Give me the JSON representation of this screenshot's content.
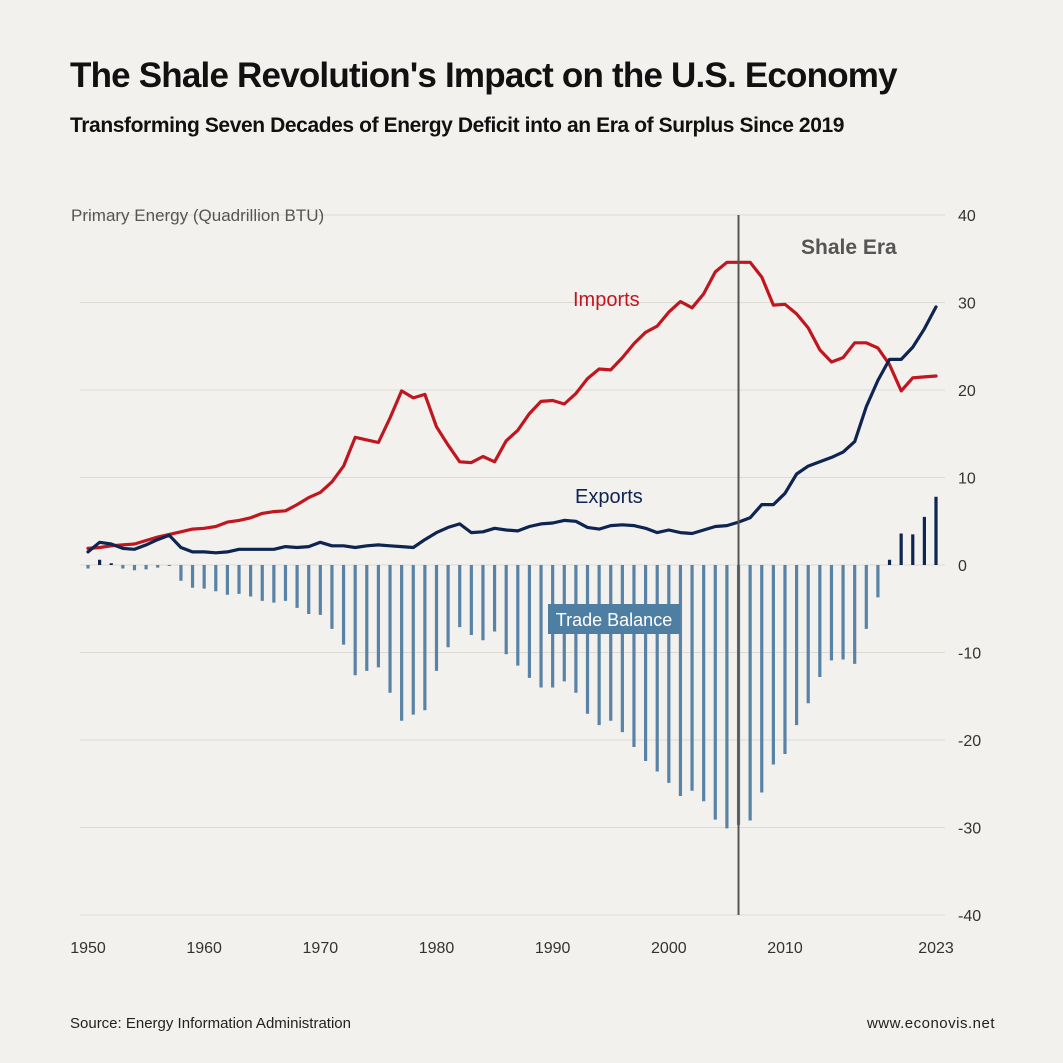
{
  "title": "The Shale Revolution's Impact on the U.S. Economy",
  "subtitle": "Transforming Seven Decades of Energy Deficit into an Era of Surplus Since 2019",
  "source": "Source: Energy Information Administration",
  "website": "www.econovis.net",
  "colors": {
    "background": "#f3f1ed",
    "imports": "#c0161f",
    "exports": "#0e2451",
    "balance_deficit": "#5882a6",
    "balance_surplus": "#0e2451",
    "shale_line": "#555555",
    "grid": "#dddad4"
  },
  "chart_data": {
    "type": "line",
    "ylabel": "Primary Energy (Quadrillion BTU)",
    "ylim": [
      -40,
      40
    ],
    "y_ticks": [
      40,
      30,
      20,
      10,
      0,
      -10,
      -20,
      -30,
      -40
    ],
    "x_range": [
      1950,
      2023
    ],
    "x_ticks": [
      1950,
      1960,
      1970,
      1980,
      1990,
      2000,
      2010,
      2023
    ],
    "grid": true,
    "annotations": [
      {
        "text": "Shale Era",
        "x": 2006
      },
      {
        "text": "Imports",
        "series": "Imports"
      },
      {
        "text": "Exports",
        "series": "Exports"
      },
      {
        "text": "Trade Balance",
        "series": "Trade Balance"
      }
    ],
    "shale_start_year": 2006,
    "x": [
      1950,
      1951,
      1952,
      1953,
      1954,
      1955,
      1956,
      1957,
      1958,
      1959,
      1960,
      1961,
      1962,
      1963,
      1964,
      1965,
      1966,
      1967,
      1968,
      1969,
      1970,
      1971,
      1972,
      1973,
      1974,
      1975,
      1976,
      1977,
      1978,
      1979,
      1980,
      1981,
      1982,
      1983,
      1984,
      1985,
      1986,
      1987,
      1988,
      1989,
      1990,
      1991,
      1992,
      1993,
      1994,
      1995,
      1996,
      1997,
      1998,
      1999,
      2000,
      2001,
      2002,
      2003,
      2004,
      2005,
      2006,
      2007,
      2008,
      2009,
      2010,
      2011,
      2012,
      2013,
      2014,
      2015,
      2016,
      2017,
      2018,
      2019,
      2020,
      2021,
      2022,
      2023
    ],
    "series": [
      {
        "name": "Imports",
        "type": "line",
        "values": [
          1.9,
          2.0,
          2.2,
          2.3,
          2.4,
          2.8,
          3.2,
          3.5,
          3.8,
          4.1,
          4.2,
          4.4,
          4.9,
          5.1,
          5.4,
          5.9,
          6.1,
          6.2,
          6.9,
          7.7,
          8.3,
          9.5,
          11.3,
          14.6,
          14.3,
          14.0,
          16.8,
          19.9,
          19.1,
          19.5,
          15.8,
          13.7,
          11.8,
          11.7,
          12.4,
          11.8,
          14.2,
          15.4,
          17.3,
          18.7,
          18.8,
          18.4,
          19.6,
          21.3,
          22.4,
          22.3,
          23.7,
          25.3,
          26.6,
          27.3,
          28.9,
          30.1,
          29.4,
          31.0,
          33.5,
          34.6,
          34.6,
          34.6,
          32.9,
          29.7,
          29.8,
          28.7,
          27.1,
          24.6,
          23.2,
          23.7,
          25.4,
          25.4,
          24.8,
          22.9,
          19.9,
          21.4,
          21.5,
          21.6
        ]
      },
      {
        "name": "Exports",
        "type": "line",
        "values": [
          1.5,
          2.6,
          2.4,
          1.9,
          1.8,
          2.3,
          2.9,
          3.4,
          2.0,
          1.5,
          1.5,
          1.4,
          1.5,
          1.8,
          1.8,
          1.8,
          1.8,
          2.1,
          2.0,
          2.1,
          2.6,
          2.2,
          2.2,
          2.0,
          2.2,
          2.3,
          2.2,
          2.1,
          2.0,
          2.9,
          3.7,
          4.3,
          4.7,
          3.7,
          3.8,
          4.2,
          4.0,
          3.9,
          4.4,
          4.7,
          4.8,
          5.1,
          5.0,
          4.3,
          4.1,
          4.5,
          4.6,
          4.5,
          4.2,
          3.7,
          4.0,
          3.7,
          3.6,
          4.0,
          4.4,
          4.5,
          4.9,
          5.4,
          6.9,
          6.9,
          8.2,
          10.4,
          11.3,
          11.8,
          12.3,
          12.9,
          14.1,
          18.1,
          21.1,
          23.5,
          23.5,
          24.9,
          27.0,
          29.5
        ]
      },
      {
        "name": "Trade Balance",
        "type": "bar",
        "values": [
          -0.4,
          0.6,
          0.2,
          -0.4,
          -0.6,
          -0.5,
          -0.3,
          -0.1,
          -1.8,
          -2.6,
          -2.7,
          -3.0,
          -3.4,
          -3.3,
          -3.6,
          -4.1,
          -4.3,
          -4.1,
          -4.9,
          -5.6,
          -5.7,
          -7.3,
          -9.1,
          -12.6,
          -12.1,
          -11.7,
          -14.6,
          -17.8,
          -17.1,
          -16.6,
          -12.1,
          -9.4,
          -7.1,
          -8.0,
          -8.6,
          -7.6,
          -10.2,
          -11.5,
          -12.9,
          -14.0,
          -14.0,
          -13.3,
          -14.6,
          -17.0,
          -18.3,
          -17.8,
          -19.1,
          -20.8,
          -22.4,
          -23.6,
          -24.9,
          -26.4,
          -25.8,
          -27.0,
          -29.1,
          -30.1,
          -29.7,
          -29.2,
          -26.0,
          -22.8,
          -21.6,
          -18.3,
          -15.8,
          -12.8,
          -10.9,
          -10.8,
          -11.3,
          -7.3,
          -3.7,
          0.6,
          3.6,
          3.5,
          5.5,
          7.8
        ]
      }
    ]
  }
}
